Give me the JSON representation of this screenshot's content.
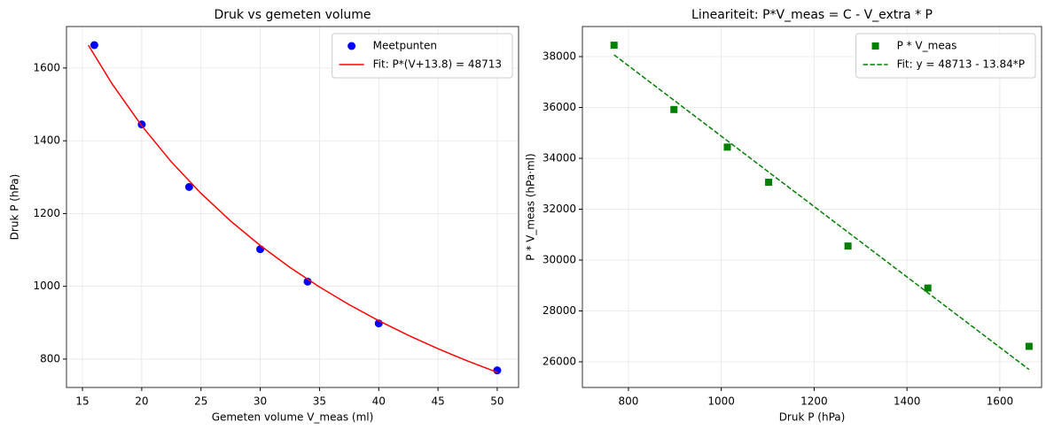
{
  "chart_data": [
    {
      "type": "scatter",
      "title": "Druk vs gemeten volume",
      "xlabel": "Gemeten volume V_meas (ml)",
      "ylabel": "Druk P (hPa)",
      "xlim": [
        13.65,
        51.8
      ],
      "ylim": [
        722,
        1714
      ],
      "xticks": [
        15,
        20,
        25,
        30,
        35,
        40,
        45,
        50
      ],
      "yticks": [
        800,
        1000,
        1200,
        1400,
        1600
      ],
      "grid": true,
      "legend": "upper right",
      "series": [
        {
          "name": "Meetpunten",
          "color": "#0000ff",
          "marker": "circle",
          "x": [
            16,
            20,
            24,
            30,
            34,
            40,
            50
          ],
          "values": [
            1663,
            1445,
            1273,
            1102,
            1013,
            898,
            769
          ]
        },
        {
          "name": "Fit: P*(V+13.8) = 48713",
          "color": "#ff0000",
          "line": "solid",
          "x": [
            15.5,
            17.5,
            20,
            22.5,
            25,
            27.5,
            30,
            32.5,
            35,
            37.5,
            40,
            42.5,
            45,
            47.5,
            50
          ],
          "values": [
            1662.6,
            1556.3,
            1441.2,
            1341.9,
            1255.5,
            1179.5,
            1112.2,
            1052.1,
            998.2,
            949.6,
            905.4,
            865.2,
            828.4,
            794.7,
            763.5
          ]
        }
      ]
    },
    {
      "type": "scatter",
      "title": "Lineariteit: P*V_meas = C - V_extra * P",
      "xlabel": "Druk P (hPa)",
      "ylabel": "P * V_meas (hPa·ml)",
      "xlim": [
        700.8,
        1690
      ],
      "ylim": [
        24991,
        39183
      ],
      "xticks": [
        800,
        1000,
        1200,
        1400,
        1600
      ],
      "yticks": [
        26000,
        28000,
        30000,
        32000,
        34000,
        36000,
        38000
      ],
      "grid": true,
      "legend": "upper right",
      "series": [
        {
          "name": "P * V_meas",
          "color": "#008000",
          "marker": "square",
          "x": [
            769,
            898,
            1013,
            1102,
            1273,
            1445,
            1663
          ],
          "values": [
            38450,
            35920,
            34442,
            33060,
            30552,
            28900,
            26608
          ]
        },
        {
          "name": "Fit: y = 48713 - 13.84*P",
          "color": "#008000",
          "line": "dashed",
          "x": [
            769,
            1663
          ],
          "values": [
            38070,
            25697
          ]
        }
      ]
    }
  ]
}
